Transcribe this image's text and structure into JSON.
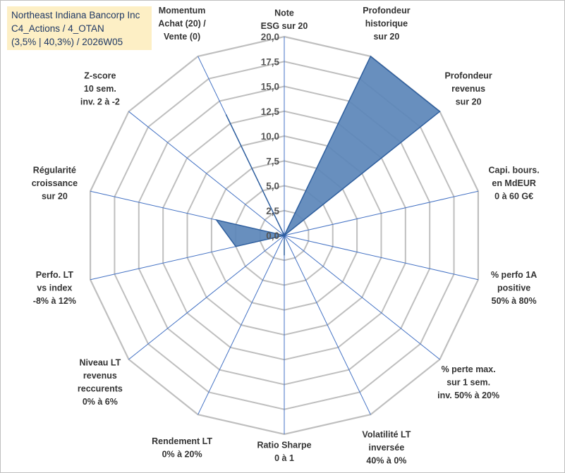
{
  "header": {
    "lines": [
      "Northeast Indiana Bancorp Inc",
      "C4_Actions / 4_OTAN",
      "(3,5% | 40,3%) / 2026W05"
    ]
  },
  "colors": {
    "fill": "#5b85b8",
    "stroke": "#2f5f9e",
    "grid": "#bfbfbf",
    "spoke": "#4472c4",
    "title_bg": "#fdefc5"
  },
  "chart_data": {
    "type": "radar",
    "rmin": 0,
    "rmax": 20,
    "tick_step": 2.5,
    "tick_labels": [
      "0,0",
      "2,5",
      "5,0",
      "7,5",
      "10,0",
      "12,5",
      "15,0",
      "17,5",
      "20,0"
    ],
    "grid": true,
    "legend": "none",
    "axes": [
      {
        "lines": [
          "Note",
          "ESG sur 20"
        ]
      },
      {
        "lines": [
          "Profondeur",
          "historique",
          "sur 20"
        ]
      },
      {
        "lines": [
          "Profondeur",
          "revenus",
          "sur 20"
        ]
      },
      {
        "lines": [
          "Capi. bours.",
          "en MdEUR",
          "0 à 60 G€"
        ]
      },
      {
        "lines": [
          "% perfo 1A",
          "positive",
          "50% à 80%"
        ]
      },
      {
        "lines": [
          "% perte max.",
          "sur 1 sem.",
          "inv. 50% à 20%"
        ]
      },
      {
        "lines": [
          "Volatilité LT",
          "inversée",
          "40% à 0%"
        ]
      },
      {
        "lines": [
          "Ratio Sharpe",
          "0 à 1"
        ]
      },
      {
        "lines": [
          "Rendement LT",
          "0% à 20%"
        ]
      },
      {
        "lines": [
          "Niveau LT",
          "revenus",
          "reccurents",
          "0% à 6%"
        ]
      },
      {
        "lines": [
          "Perfo. LT",
          "vs index",
          "-8% à 12%"
        ]
      },
      {
        "lines": [
          "Régularité",
          "croissance",
          "sur 20"
        ]
      },
      {
        "lines": [
          "Z-score",
          "10 sem.",
          "inv. 2 à -2"
        ]
      },
      {
        "lines": [
          "Momentum",
          "Achat (20) /",
          "Vente (0)"
        ]
      }
    ],
    "series": [
      {
        "values": [
          0,
          20,
          20,
          0,
          0,
          0,
          0,
          2,
          0,
          0,
          5,
          7,
          0,
          13.5
        ]
      }
    ]
  }
}
